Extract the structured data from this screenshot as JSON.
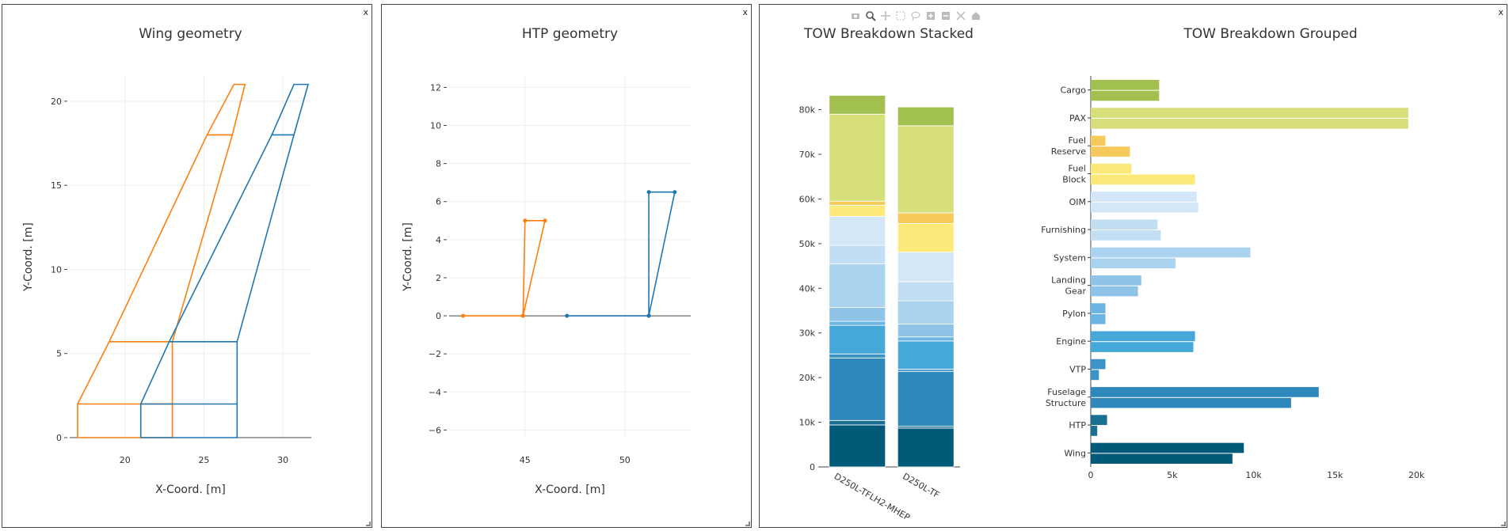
{
  "panels": {
    "wing": {
      "close_label": "x"
    },
    "htp": {
      "close_label": "x"
    },
    "tow": {
      "close_label": "x"
    }
  },
  "toolbar": [
    "camera-icon",
    "zoom-icon",
    "pan-icon",
    "box-select-icon",
    "lasso-icon",
    "zoom-in-icon",
    "zoom-out-icon",
    "autoscale-icon",
    "reset-axes-icon"
  ],
  "colors": {
    "orange": "#ff7f0e",
    "blue": "#1f77b4",
    "grid": "#eeeeee",
    "text": "#333333"
  },
  "chart_data": [
    {
      "type": "line",
      "title": "Wing geometry",
      "xlabel": "X-Coord. [m]",
      "ylabel": "Y-Coord. [m]",
      "xlim": [
        16.5,
        31.8
      ],
      "ylim": [
        0,
        21.5
      ],
      "xticks": [
        20,
        25,
        30
      ],
      "yticks": [
        0,
        5,
        10,
        15,
        20
      ],
      "grid": true,
      "series": [
        {
          "color": "#ff7f0e",
          "segments": [
            [
              [
                17,
                0
              ],
              [
                17,
                2
              ],
              [
                23,
                2
              ],
              [
                23,
                0
              ],
              [
                17,
                0
              ]
            ],
            [
              [
                17,
                2
              ],
              [
                19,
                5.7
              ],
              [
                23,
                5.7
              ],
              [
                23,
                2
              ]
            ],
            [
              [
                19,
                5.7
              ],
              [
                25.2,
                18
              ],
              [
                26.8,
                18
              ],
              [
                23,
                5.7
              ]
            ],
            [
              [
                25.2,
                18
              ],
              [
                26.9,
                21
              ],
              [
                27.6,
                21
              ],
              [
                26.8,
                18
              ]
            ]
          ]
        },
        {
          "color": "#1f77b4",
          "segments": [
            [
              [
                21,
                0
              ],
              [
                21,
                2
              ],
              [
                27.1,
                2
              ],
              [
                27.1,
                0
              ],
              [
                21,
                0
              ]
            ],
            [
              [
                21,
                2
              ],
              [
                22.8,
                5.7
              ],
              [
                27.1,
                5.7
              ],
              [
                27.1,
                2
              ]
            ],
            [
              [
                22.8,
                5.7
              ],
              [
                29.3,
                18
              ],
              [
                30.7,
                18
              ],
              [
                27.1,
                5.7
              ]
            ],
            [
              [
                29.3,
                18
              ],
              [
                30.7,
                21
              ],
              [
                31.6,
                21
              ],
              [
                30.7,
                18
              ]
            ]
          ]
        }
      ]
    },
    {
      "type": "line",
      "title": "HTP geometry",
      "xlabel": "X-Coord. [m]",
      "ylabel": "Y-Coord. [m]",
      "xlim": [
        41.2,
        53.3
      ],
      "ylim": [
        -6.4,
        12.6
      ],
      "xticks": [
        45,
        50
      ],
      "yticks": [
        -6,
        -4,
        -2,
        0,
        2,
        4,
        6,
        8,
        10,
        12
      ],
      "grid": true,
      "series": [
        {
          "color": "#ff7f0e",
          "markers": true,
          "points": [
            [
              41.9,
              0
            ],
            [
              44.9,
              0
            ],
            [
              45,
              5
            ],
            [
              46,
              5
            ],
            [
              44.9,
              0
            ]
          ]
        },
        {
          "color": "#1f77b4",
          "markers": true,
          "points": [
            [
              47.1,
              0
            ],
            [
              51.2,
              0
            ],
            [
              51.2,
              6.5
            ],
            [
              52.5,
              6.5
            ],
            [
              51.2,
              0
            ]
          ]
        }
      ]
    },
    {
      "type": "bar",
      "stacked": true,
      "title": "TOW Breakdown Stacked",
      "categories": [
        "D250L-TFLH2-MHEP",
        "D250L-TF"
      ],
      "ylim": [
        0,
        84000
      ],
      "yticks": [
        0,
        10000,
        20000,
        30000,
        40000,
        50000,
        60000,
        70000,
        80000
      ],
      "ytick_labels": [
        "0",
        "10k",
        "20k",
        "30k",
        "40k",
        "50k",
        "60k",
        "70k",
        "80k"
      ],
      "series": [
        {
          "name": "Wing",
          "color": "#005a78",
          "values": [
            9400,
            8700
          ]
        },
        {
          "name": "HTP",
          "color": "#1a6f92",
          "values": [
            1000,
            400
          ]
        },
        {
          "name": "Fuselage Structure",
          "color": "#2e88bc",
          "values": [
            14000,
            12300
          ]
        },
        {
          "name": "VTP",
          "color": "#3b93c6",
          "values": [
            900,
            500
          ]
        },
        {
          "name": "Engine",
          "color": "#45a8d8",
          "values": [
            6400,
            6300
          ]
        },
        {
          "name": "Pylon",
          "color": "#6cb5e2",
          "values": [
            900,
            900
          ]
        },
        {
          "name": "Landing Gear",
          "color": "#8fc4e8",
          "values": [
            3100,
            2900
          ]
        },
        {
          "name": "System",
          "color": "#a9d3ee",
          "values": [
            9800,
            5200
          ]
        },
        {
          "name": "Furnishing",
          "color": "#c2def3",
          "values": [
            4100,
            4300
          ]
        },
        {
          "name": "OIM",
          "color": "#d3e7f8",
          "values": [
            6500,
            6600
          ]
        },
        {
          "name": "Fuel Block",
          "color": "#fde87a",
          "values": [
            2500,
            6400
          ]
        },
        {
          "name": "Fuel Reserve",
          "color": "#f5c95a",
          "values": [
            900,
            2400
          ]
        },
        {
          "name": "PAX",
          "color": "#d7df7b",
          "values": [
            19500,
            19500
          ]
        },
        {
          "name": "Cargo",
          "color": "#a2c04f",
          "values": [
            4200,
            4200
          ]
        }
      ]
    },
    {
      "type": "bar",
      "orientation": "horizontal",
      "grouped": true,
      "title": "TOW Breakdown Grouped",
      "categories": [
        "Wing",
        "HTP",
        "Fuselage Structure",
        "VTP",
        "Engine",
        "Pylon",
        "Landing Gear",
        "System",
        "Furnishing",
        "OIM",
        "Fuel Block",
        "Fuel Reserve",
        "PAX",
        "Cargo"
      ],
      "category_labels": [
        [
          "Wing"
        ],
        [
          "HTP"
        ],
        [
          "Fuselage",
          "Structure"
        ],
        [
          "VTP"
        ],
        [
          "Engine"
        ],
        [
          "Pylon"
        ],
        [
          "Landing",
          "Gear"
        ],
        [
          "System"
        ],
        [
          "Furnishing"
        ],
        [
          "OIM"
        ],
        [
          "Fuel",
          "Block"
        ],
        [
          "Fuel",
          "Reserve"
        ],
        [
          "PAX"
        ],
        [
          "Cargo"
        ]
      ],
      "colors": [
        "#005a78",
        "#1a6f92",
        "#2e88bc",
        "#3b93c6",
        "#45a8d8",
        "#6cb5e2",
        "#8fc4e8",
        "#a9d3ee",
        "#c2def3",
        "#d3e7f8",
        "#fde87a",
        "#f5c95a",
        "#d7df7b",
        "#a2c04f"
      ],
      "xlim": [
        0,
        21500
      ],
      "xticks": [
        0,
        5000,
        10000,
        15000,
        20000
      ],
      "xtick_labels": [
        "0",
        "5k",
        "10k",
        "15k",
        "20k"
      ],
      "series": [
        {
          "values": [
            9400,
            1000,
            14000,
            900,
            6400,
            900,
            3100,
            9800,
            4100,
            6500,
            2500,
            900,
            19500,
            4200
          ]
        },
        {
          "values": [
            8700,
            400,
            12300,
            500,
            6300,
            900,
            2900,
            5200,
            4300,
            6600,
            6400,
            2400,
            19500,
            4200
          ]
        }
      ]
    }
  ]
}
